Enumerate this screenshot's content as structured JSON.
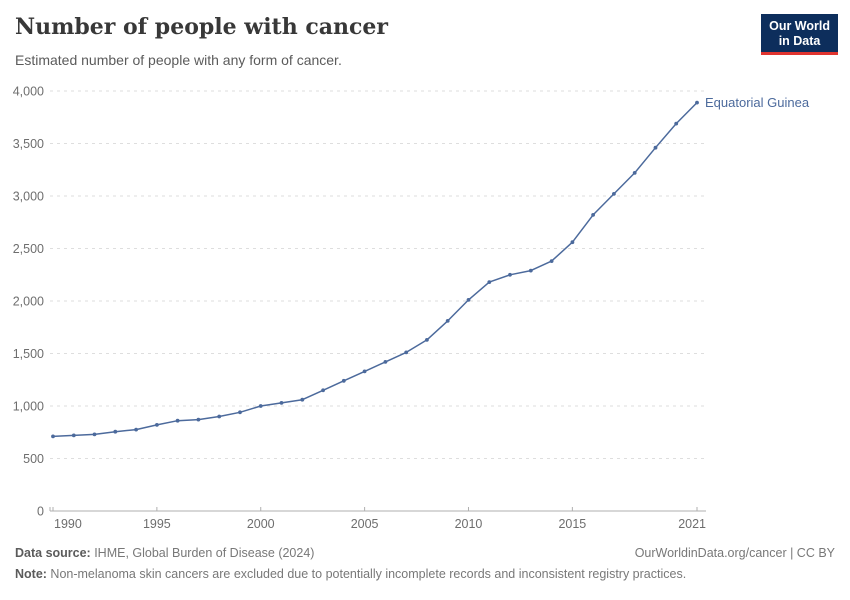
{
  "header": {
    "title": "Number of people with cancer",
    "subtitle": "Estimated number of people with any form of cancer.",
    "logo": {
      "line1": "Our World",
      "line2": "in Data"
    }
  },
  "chart_data": {
    "type": "line",
    "title": "Number of people with cancer",
    "xlabel": "",
    "ylabel": "",
    "xlim": [
      1990,
      2021
    ],
    "ylim": [
      0,
      4000
    ],
    "grid": "horizontal-dashed",
    "legend_position": "end-of-line-label",
    "x_ticks": [
      1990,
      1995,
      2000,
      2005,
      2010,
      2015,
      2021
    ],
    "y_ticks": [
      0,
      500,
      1000,
      1500,
      2000,
      2500,
      3000,
      3500,
      4000
    ],
    "series": [
      {
        "name": "Equatorial Guinea",
        "color": "#4C6A9C",
        "x": [
          1990,
          1991,
          1992,
          1993,
          1994,
          1995,
          1996,
          1997,
          1998,
          1999,
          2000,
          2001,
          2002,
          2003,
          2004,
          2005,
          2006,
          2007,
          2008,
          2009,
          2010,
          2011,
          2012,
          2013,
          2014,
          2015,
          2016,
          2017,
          2018,
          2019,
          2020,
          2021
        ],
        "values": [
          710,
          720,
          730,
          755,
          775,
          820,
          860,
          870,
          900,
          940,
          1000,
          1030,
          1060,
          1150,
          1240,
          1330,
          1420,
          1510,
          1630,
          1810,
          2010,
          2180,
          2250,
          2290,
          2380,
          2560,
          2820,
          3020,
          3220,
          3460,
          3690,
          3890
        ]
      }
    ]
  },
  "footer": {
    "source_label": "Data source:",
    "source_text": " IHME, Global Burden of Disease (2024)",
    "rights": "OurWorldinData.org/cancer | CC BY",
    "note_label": "Note:",
    "note_text": " Non-melanoma skin cancers are excluded due to potentially incomplete records and inconsistent registry practices."
  },
  "colors": {
    "line": "#4C6A9C",
    "gridline": "#dedede",
    "axis": "#afafaf",
    "logo_bg": "#0d2e5c",
    "logo_stripe": "#e0342f",
    "title_text": "#383838",
    "tick_text": "#6e6e6e"
  }
}
